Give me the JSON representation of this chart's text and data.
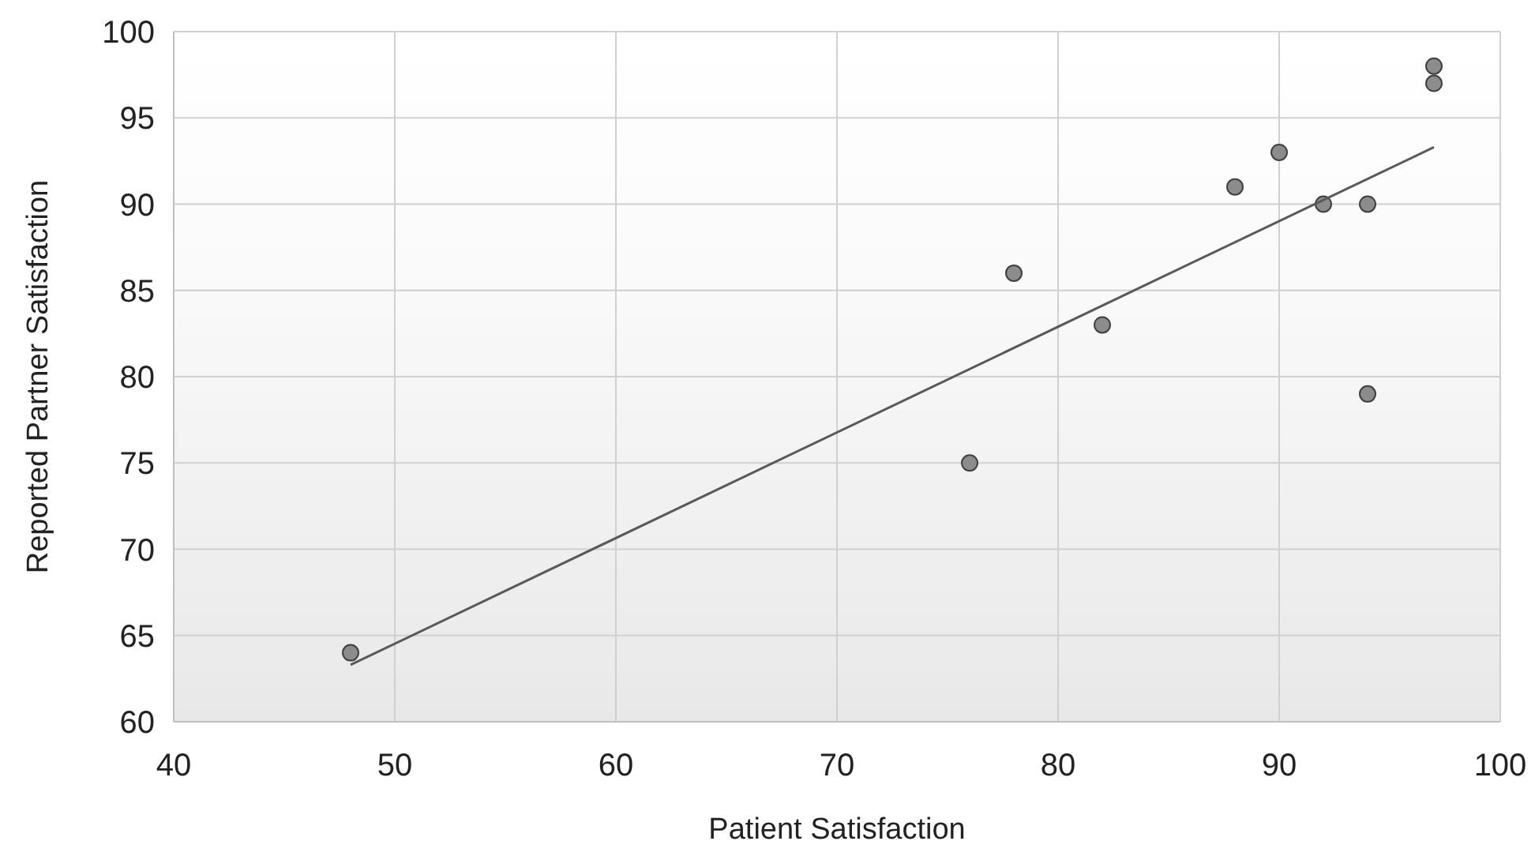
{
  "chart_data": {
    "type": "scatter",
    "xlabel": "Patient Satisfaction",
    "ylabel": "Reported Partner Satisfaction",
    "xlim": [
      40,
      100
    ],
    "xticks": [
      40,
      50,
      60,
      70,
      80,
      90,
      100
    ],
    "ylim": [
      60,
      100
    ],
    "yticks": [
      60,
      65,
      70,
      75,
      80,
      85,
      90,
      95,
      100
    ],
    "grid": true,
    "marker": "circle",
    "series": [
      {
        "color": "#8c8c8c",
        "x": [
          48,
          76,
          78,
          82,
          88,
          90,
          92,
          94,
          94,
          97,
          97
        ],
        "values": [
          64,
          75,
          86,
          83,
          91,
          93,
          90,
          90,
          79,
          98,
          97
        ]
      },
      {
        "type": "line",
        "marker": "none",
        "color": "#595959",
        "x": [
          48,
          97
        ],
        "values": [
          63.3,
          93.3
        ]
      }
    ]
  }
}
